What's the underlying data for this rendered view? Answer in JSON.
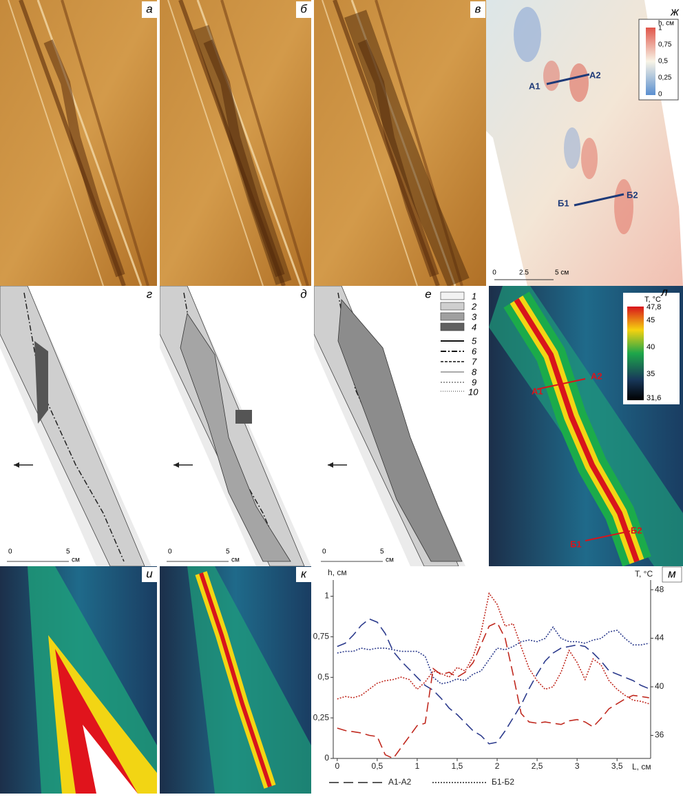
{
  "panels": [
    "а",
    "б",
    "в",
    "ж",
    "г",
    "д",
    "е",
    "л",
    "и",
    "к",
    "м"
  ],
  "height_map": {
    "legend_title": "h, см",
    "legend_ticks": [
      "1",
      "0,75",
      "0,5",
      "0,25",
      "0"
    ],
    "profiles": [
      "А1",
      "А2",
      "Б1",
      "Б2"
    ],
    "scale": [
      "0",
      "2.5",
      "5 см"
    ]
  },
  "scheme": {
    "legend": [
      "1",
      "2",
      "3",
      "4",
      "5",
      "6",
      "7",
      "8",
      "9",
      "10"
    ],
    "scale": [
      "0",
      "5",
      "см"
    ]
  },
  "thermal_map": {
    "legend_title": "T, °C",
    "legend_ticks": [
      "47,8",
      "45",
      "40",
      "35",
      "31,6"
    ],
    "profiles": [
      "А1",
      "А2",
      "Б1",
      "Б2"
    ]
  },
  "chart_data": {
    "type": "line",
    "x_label": "L, см",
    "y_label": "h, см",
    "y2_label": "T, °C",
    "x": [
      0,
      0.1,
      0.2,
      0.3,
      0.4,
      0.5,
      0.6,
      0.7,
      0.8,
      0.9,
      1,
      1.1,
      1.2,
      1.3,
      1.4,
      1.5,
      1.6,
      1.7,
      1.8,
      1.9,
      2,
      2.1,
      2.2,
      2.3,
      2.4,
      2.5,
      2.6,
      2.7,
      2.8,
      2.9,
      3,
      3.1,
      3.2,
      3.3,
      3.4,
      3.5,
      3.6,
      3.7,
      3.8,
      3.9
    ],
    "xlim": [
      -0.05,
      3.92
    ],
    "xticks": [
      0,
      {
        "value": 0.5,
        "label": "0,5"
      },
      1,
      {
        "value": 1.5,
        "label": "1,5"
      },
      2,
      {
        "value": 2.5,
        "label": "2,5"
      },
      3,
      {
        "value": 3.5,
        "label": "3,5"
      }
    ],
    "ylim": [
      0,
      1.1
    ],
    "yticks": [
      0,
      {
        "value": 0.25,
        "label": "0,25"
      },
      {
        "value": 0.5,
        "label": "0,5"
      },
      {
        "value": 0.75,
        "label": "0,75"
      },
      1
    ],
    "y2lim": [
      34.1,
      48.8
    ],
    "y2ticks": [
      36,
      40,
      44,
      48
    ],
    "series": [
      {
        "name": "А1-А2",
        "color": "#2b3a8c",
        "dash": "14,7",
        "values": [
          0.69,
          0.71,
          0.76,
          0.82,
          0.86,
          0.84,
          0.77,
          0.66,
          0.6,
          0.55,
          0.5,
          0.45,
          0.42,
          0.37,
          0.31,
          0.27,
          0.22,
          0.17,
          0.14,
          0.09,
          0.1,
          0.17,
          0.25,
          0.33,
          0.43,
          0.52,
          0.6,
          0.65,
          0.68,
          0.69,
          0.7,
          0.69,
          0.65,
          0.6,
          0.54,
          0.52,
          0.5,
          0.48,
          0.45,
          0.43
        ]
      },
      {
        "name": "Б1-Б2",
        "color": "#2b3a8c",
        "dash": "2,2",
        "values": [
          0.65,
          0.66,
          0.66,
          0.68,
          0.67,
          0.68,
          0.68,
          0.67,
          0.66,
          0.66,
          0.66,
          0.63,
          0.5,
          0.46,
          0.47,
          0.49,
          0.48,
          0.52,
          0.54,
          0.61,
          0.68,
          0.67,
          0.69,
          0.72,
          0.73,
          0.72,
          0.74,
          0.81,
          0.74,
          0.72,
          0.72,
          0.71,
          0.73,
          0.74,
          0.78,
          0.79,
          0.74,
          0.7,
          0.7,
          0.71
        ]
      },
      {
        "name": "А1-А2",
        "color": "#c0281e",
        "dash": "14,7",
        "axis": "y2",
        "values": [
          36.6,
          36.4,
          36.3,
          36.2,
          36,
          35.9,
          34.4,
          34.1,
          35,
          35.9,
          36.8,
          37,
          41.5,
          41,
          41.2,
          40.8,
          41.2,
          42,
          43.5,
          45,
          45.3,
          44,
          41,
          37.8,
          37.1,
          37,
          37.1,
          37,
          36.9,
          37.2,
          37.3,
          37.1,
          36.7,
          37.4,
          38.2,
          38.6,
          39,
          39.3,
          39.2,
          39.1
        ]
      },
      {
        "name": "Б1-Б2",
        "color": "#c0281e",
        "dash": "2,2",
        "axis": "y2",
        "values": [
          39,
          39.2,
          39.1,
          39.3,
          39.8,
          40.3,
          40.5,
          40.6,
          40.8,
          40.6,
          39.8,
          40.4,
          41.3,
          41.1,
          40.8,
          41.6,
          41.3,
          42.5,
          44.5,
          47.7,
          46.8,
          45,
          45.2,
          43.3,
          41.5,
          40.5,
          39.8,
          40,
          41.2,
          43,
          42,
          40.6,
          42.3,
          41.8,
          40.5,
          39.8,
          39.3,
          38.9,
          38.8,
          38.6
        ]
      }
    ]
  }
}
